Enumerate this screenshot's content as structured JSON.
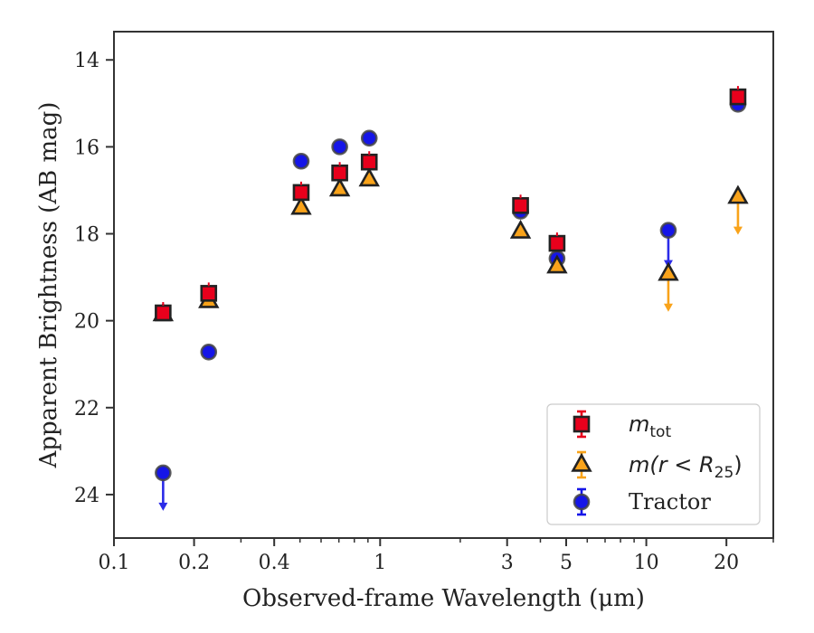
{
  "chart_data": {
    "type": "scatter",
    "xlabel": "Observed-frame Wavelength (μm)",
    "ylabel": "Apparent Brightness (AB mag)",
    "xscale": "log",
    "xlim": [
      0.1,
      30
    ],
    "ylim": [
      25.0,
      13.35
    ],
    "y_inverted": true,
    "x_ticks": [
      0.1,
      0.2,
      0.4,
      1,
      3,
      5,
      10,
      20
    ],
    "x_tick_labels": [
      "0.1",
      "0.2",
      "0.4",
      "1",
      "3",
      "5",
      "10",
      "20"
    ],
    "y_ticks": [
      14,
      16,
      18,
      20,
      22,
      24
    ],
    "y_tick_labels": [
      "14",
      "16",
      "18",
      "20",
      "22",
      "24"
    ],
    "grid": false,
    "legend_position": "lower-right",
    "series": [
      {
        "name": "m_tot",
        "label_base": "m",
        "label_sub": "tot",
        "marker": "square",
        "color": "#e8001c",
        "points": [
          {
            "x": 0.153,
            "y": 19.82
          },
          {
            "x": 0.227,
            "y": 19.37
          },
          {
            "x": 0.505,
            "y": 17.05
          },
          {
            "x": 0.705,
            "y": 16.6
          },
          {
            "x": 0.91,
            "y": 16.35
          },
          {
            "x": 3.37,
            "y": 17.35
          },
          {
            "x": 4.62,
            "y": 18.22
          },
          {
            "x": 22.1,
            "y": 14.85
          }
        ]
      },
      {
        "name": "m(r < R25)",
        "label_base": "m(r < R",
        "label_sub": "25",
        "label_end": ")",
        "marker": "triangle",
        "color": "#f9a31a",
        "points": [
          {
            "x": 0.153,
            "y": 19.85,
            "upper_limit": false
          },
          {
            "x": 0.227,
            "y": 19.55,
            "upper_limit": false
          },
          {
            "x": 0.505,
            "y": 17.4,
            "upper_limit": false
          },
          {
            "x": 0.705,
            "y": 16.98,
            "upper_limit": false
          },
          {
            "x": 0.91,
            "y": 16.75,
            "upper_limit": false
          },
          {
            "x": 3.37,
            "y": 17.95,
            "upper_limit": false
          },
          {
            "x": 4.62,
            "y": 18.75,
            "upper_limit": false
          },
          {
            "x": 12.1,
            "y": 18.92,
            "upper_limit": true
          },
          {
            "x": 22.1,
            "y": 17.15,
            "upper_limit": true
          }
        ]
      },
      {
        "name": "Tractor",
        "marker": "circle",
        "color": "#1515e8",
        "points": [
          {
            "x": 0.153,
            "y": 23.5,
            "upper_limit": true
          },
          {
            "x": 0.227,
            "y": 20.72,
            "upper_limit": false
          },
          {
            "x": 0.505,
            "y": 16.33,
            "upper_limit": false
          },
          {
            "x": 0.705,
            "y": 16.0,
            "upper_limit": false
          },
          {
            "x": 0.91,
            "y": 15.8,
            "upper_limit": false
          },
          {
            "x": 3.37,
            "y": 17.48,
            "upper_limit": false
          },
          {
            "x": 4.62,
            "y": 18.57,
            "upper_limit": false
          },
          {
            "x": 12.1,
            "y": 17.92,
            "upper_limit": true
          },
          {
            "x": 22.1,
            "y": 15.02,
            "upper_limit": false
          }
        ]
      }
    ]
  }
}
